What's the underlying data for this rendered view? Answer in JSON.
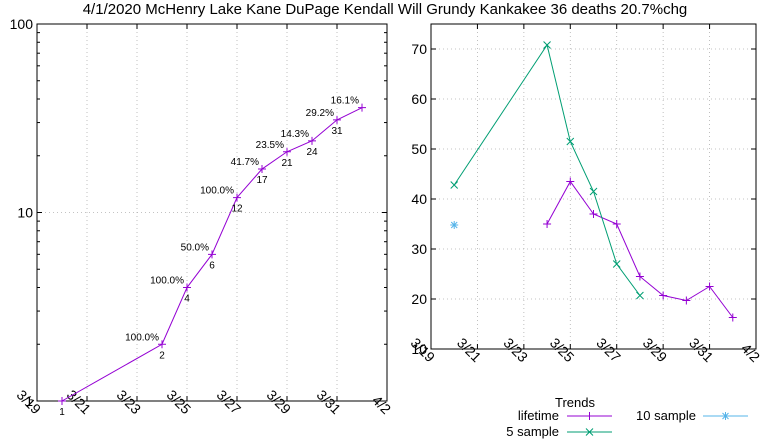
{
  "title": "4/1/2020 McHenry Lake Kane DuPage Kendall Will Grundy Kankakee 36 deaths 20.7%chg",
  "chart_data": [
    {
      "type": "line",
      "yscale": "log",
      "xlim": [
        "3/19",
        "4/2"
      ],
      "ylim": [
        1,
        100
      ],
      "grid": true,
      "x_ticks": [
        "3/19",
        "3/21",
        "3/23",
        "3/25",
        "3/27",
        "3/29",
        "3/31",
        "4/2"
      ],
      "y_ticks": [
        "1",
        "10",
        "100"
      ],
      "color": "#9400d3",
      "points": [
        {
          "x": "3/20",
          "y": 1,
          "label": "1",
          "pct": ""
        },
        {
          "x": "3/24",
          "y": 2,
          "label": "2",
          "pct": "100.0%"
        },
        {
          "x": "3/25",
          "y": 4,
          "label": "4",
          "pct": "100.0%"
        },
        {
          "x": "3/26",
          "y": 6,
          "label": "6",
          "pct": "50.0%"
        },
        {
          "x": "3/27",
          "y": 12,
          "label": "12",
          "pct": "100.0%"
        },
        {
          "x": "3/28",
          "y": 17,
          "label": "17",
          "pct": "41.7%"
        },
        {
          "x": "3/29",
          "y": 21,
          "label": "21",
          "pct": "23.5%"
        },
        {
          "x": "3/30",
          "y": 24,
          "label": "24",
          "pct": "14.3%"
        },
        {
          "x": "3/31",
          "y": 31,
          "label": "31",
          "pct": "29.2%"
        },
        {
          "x": "4/1",
          "y": 36,
          "label": "",
          "pct": "16.1%"
        }
      ]
    },
    {
      "type": "line",
      "xlim": [
        "3/19",
        "4/2"
      ],
      "ylim": [
        10,
        75
      ],
      "grid": true,
      "x_ticks": [
        "3/19",
        "3/21",
        "3/23",
        "3/25",
        "3/27",
        "3/29",
        "3/31",
        "4/2"
      ],
      "y_ticks": [
        "10",
        "20",
        "30",
        "40",
        "50",
        "60",
        "70"
      ],
      "legend_title": "Trends",
      "legend_position": "bottom-right",
      "series": [
        {
          "name": "lifetime",
          "color": "#9400d3",
          "marker": "plus",
          "points": [
            [
              "3/24",
              35
            ],
            [
              "3/25",
              43.5
            ],
            [
              "3/26",
              37
            ],
            [
              "3/27",
              35
            ],
            [
              "3/28",
              24.5
            ],
            [
              "3/29",
              20.7
            ],
            [
              "3/30",
              19.7
            ],
            [
              "3/31",
              22.5
            ],
            [
              "4/1",
              16.3
            ]
          ]
        },
        {
          "name": "5 sample",
          "color": "#009e73",
          "marker": "x",
          "points": [
            [
              "3/20",
              42.8
            ],
            [
              "3/24",
              70.8
            ],
            [
              "3/25",
              51.5
            ],
            [
              "3/26",
              41.5
            ],
            [
              "3/27",
              27
            ],
            [
              "3/28",
              20.7
            ]
          ]
        },
        {
          "name": "10 sample",
          "color": "#56b4e9",
          "marker": "star",
          "points": [
            [
              "3/20",
              34.8
            ]
          ]
        }
      ]
    }
  ]
}
